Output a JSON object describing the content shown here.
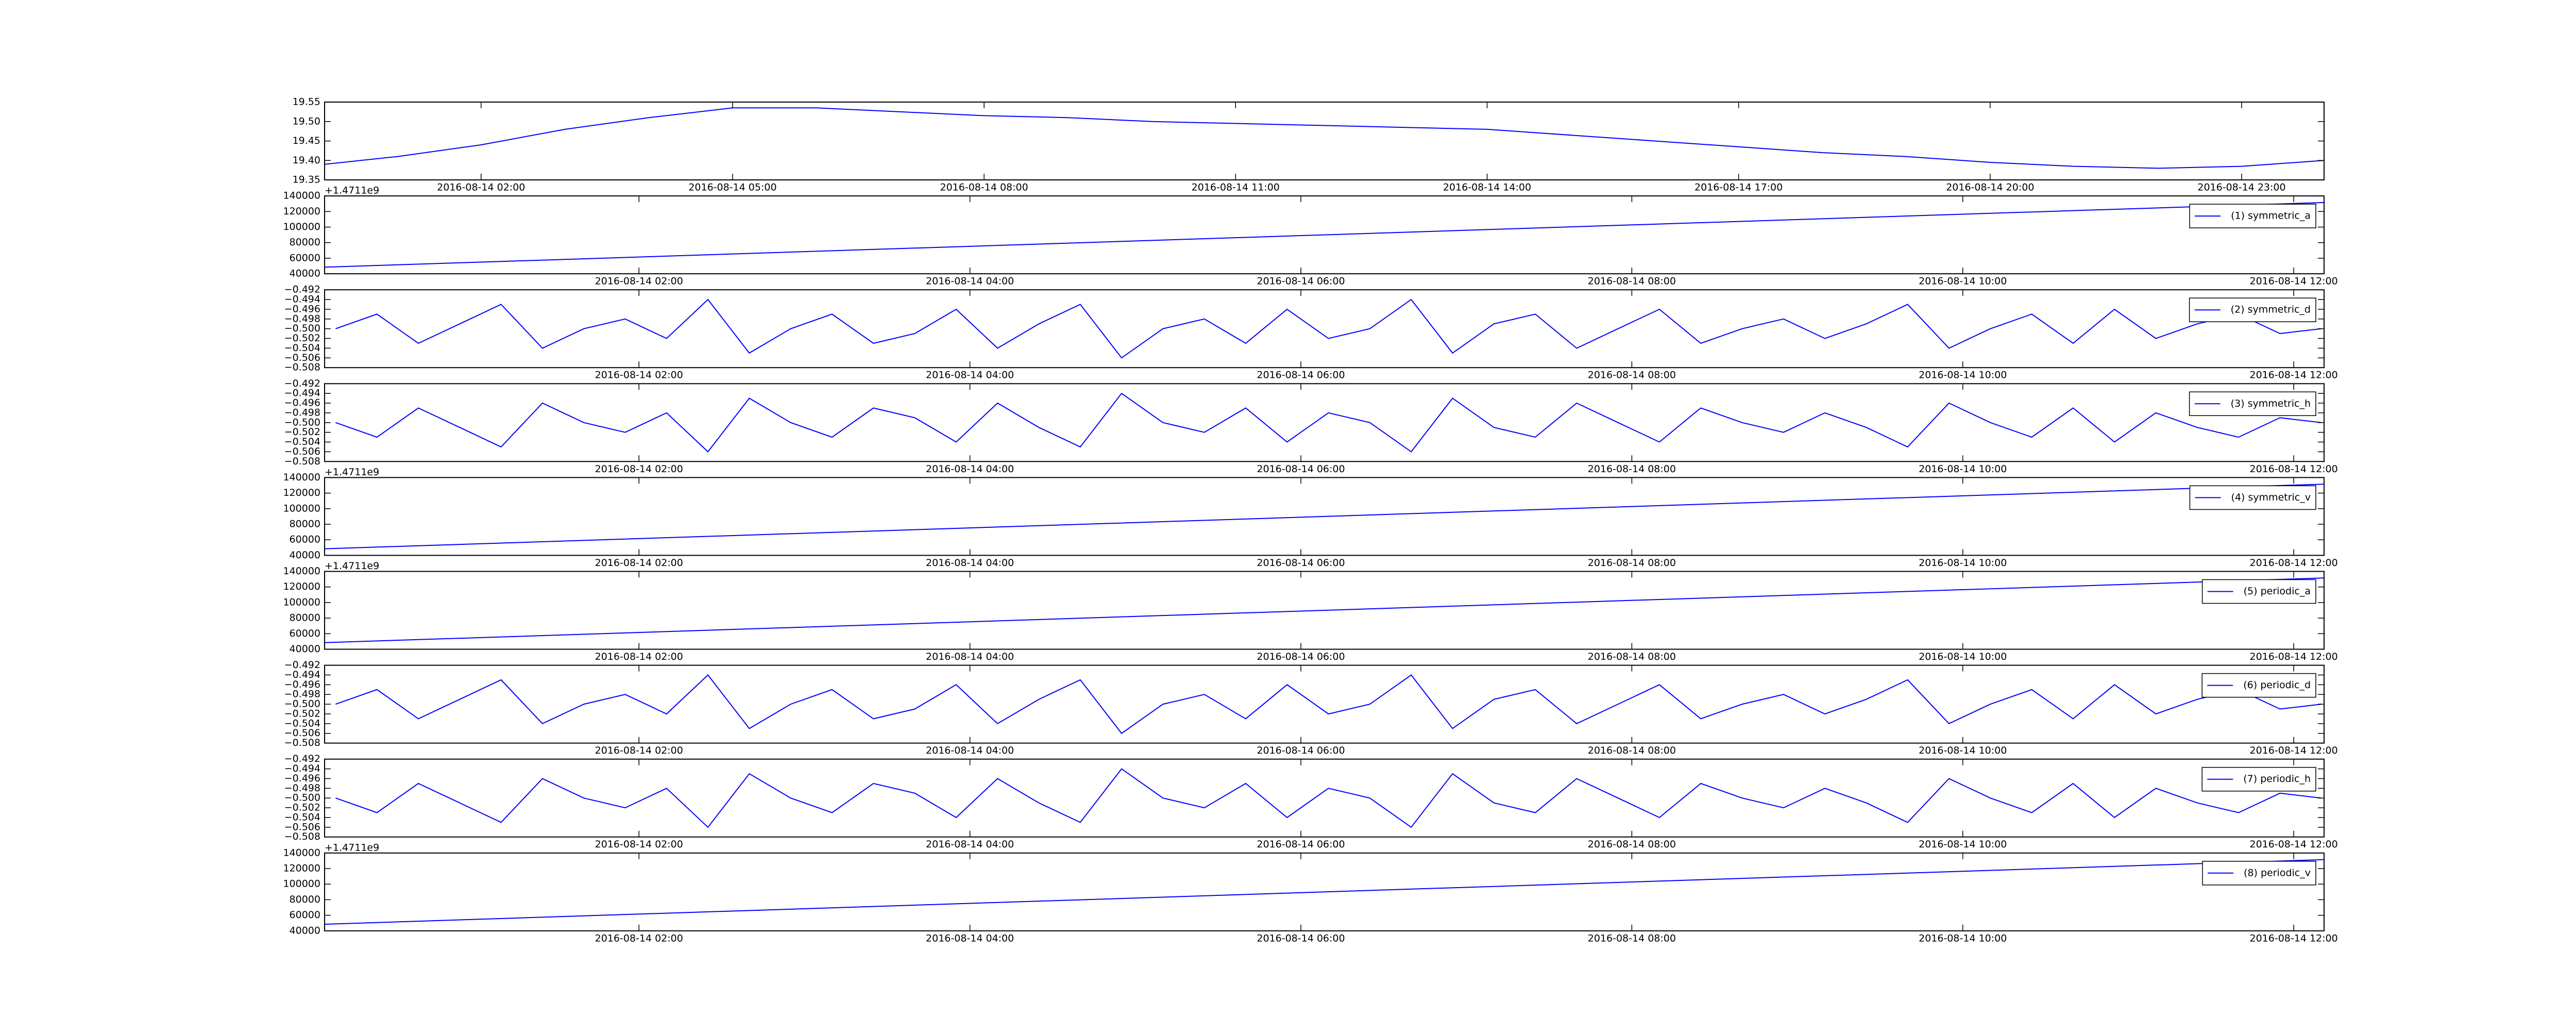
{
  "chart_data": [
    {
      "type": "line",
      "x": [
        "2016-08-14 00:08",
        "2016-08-14 01:00",
        "2016-08-14 02:00",
        "2016-08-14 03:00",
        "2016-08-14 04:00",
        "2016-08-14 05:00",
        "2016-08-14 06:00",
        "2016-08-14 07:00",
        "2016-08-14 08:00",
        "2016-08-14 09:00",
        "2016-08-14 10:00",
        "2016-08-14 11:00",
        "2016-08-14 12:00",
        "2016-08-14 13:00",
        "2016-08-14 14:00",
        "2016-08-14 15:00",
        "2016-08-14 16:00",
        "2016-08-14 17:00",
        "2016-08-14 18:00",
        "2016-08-14 19:00",
        "2016-08-14 20:00",
        "2016-08-14 21:00",
        "2016-08-14 22:00",
        "2016-08-14 23:00",
        "2016-08-14 23:59"
      ],
      "series": [
        {
          "color": "#0000ff",
          "values": [
            19.39,
            19.41,
            19.44,
            19.48,
            19.51,
            19.535,
            19.535,
            19.525,
            19.515,
            19.51,
            19.5,
            19.495,
            19.49,
            19.485,
            19.48,
            19.465,
            19.45,
            19.435,
            19.42,
            19.41,
            19.395,
            19.385,
            19.38,
            19.385,
            19.4
          ]
        }
      ],
      "xlim": [
        "2016-08-14 00:08",
        "2016-08-14 23:59"
      ],
      "xticks": [
        "2016-08-14 02:00",
        "2016-08-14 05:00",
        "2016-08-14 08:00",
        "2016-08-14 11:00",
        "2016-08-14 14:00",
        "2016-08-14 17:00",
        "2016-08-14 20:00",
        "2016-08-14 23:00"
      ],
      "ylim": [
        19.35,
        19.55
      ],
      "yticks": [
        19.35,
        {
          "value": 19.4,
          "label": "19.40"
        },
        19.45,
        {
          "value": 19.5,
          "label": "19.50"
        },
        19.55
      ]
    },
    {
      "type": "line",
      "x": [
        "2016-08-14 00:06",
        "2016-08-14 12:11"
      ],
      "series": [
        {
          "name": "(1) symmetric_a",
          "color": "#0000ff",
          "values": [
            48500,
            131500
          ]
        }
      ],
      "xlim": [
        "2016-08-14 00:06",
        "2016-08-14 12:11"
      ],
      "xticks": [
        "2016-08-14 02:00",
        "2016-08-14 04:00",
        "2016-08-14 06:00",
        "2016-08-14 08:00",
        "2016-08-14 10:00",
        "2016-08-14 12:00"
      ],
      "ylim": [
        40000,
        140000
      ],
      "yticks": [
        40000,
        60000,
        80000,
        100000,
        120000,
        140000
      ],
      "y_offset_text": "+1.4711e9",
      "legend": "upper right"
    },
    {
      "type": "line",
      "x": [
        "2016-08-14 00:10",
        "2016-08-14 00:25",
        "2016-08-14 00:40",
        "2016-08-14 00:55",
        "2016-08-14 01:10",
        "2016-08-14 01:25",
        "2016-08-14 01:40",
        "2016-08-14 01:55",
        "2016-08-14 02:10",
        "2016-08-14 02:25",
        "2016-08-14 02:40",
        "2016-08-14 02:55",
        "2016-08-14 03:10",
        "2016-08-14 03:25",
        "2016-08-14 03:40",
        "2016-08-14 03:55",
        "2016-08-14 04:10",
        "2016-08-14 04:25",
        "2016-08-14 04:40",
        "2016-08-14 04:55",
        "2016-08-14 05:10",
        "2016-08-14 05:25",
        "2016-08-14 05:40",
        "2016-08-14 05:55",
        "2016-08-14 06:10",
        "2016-08-14 06:25",
        "2016-08-14 06:40",
        "2016-08-14 06:55",
        "2016-08-14 07:10",
        "2016-08-14 07:25",
        "2016-08-14 07:40",
        "2016-08-14 07:55",
        "2016-08-14 08:10",
        "2016-08-14 08:25",
        "2016-08-14 08:40",
        "2016-08-14 08:55",
        "2016-08-14 09:10",
        "2016-08-14 09:25",
        "2016-08-14 09:40",
        "2016-08-14 09:55",
        "2016-08-14 10:10",
        "2016-08-14 10:25",
        "2016-08-14 10:40",
        "2016-08-14 10:55",
        "2016-08-14 11:10",
        "2016-08-14 11:25",
        "2016-08-14 11:40",
        "2016-08-14 11:55",
        "2016-08-14 12:10"
      ],
      "series": [
        {
          "name": "(2) symmetric_d",
          "color": "#0000ff",
          "values": [
            -0.5,
            -0.497,
            -0.503,
            -0.499,
            -0.495,
            -0.504,
            -0.5,
            -0.498,
            -0.502,
            -0.494,
            -0.505,
            -0.5,
            -0.497,
            -0.503,
            -0.501,
            -0.496,
            -0.504,
            -0.499,
            -0.495,
            -0.506,
            -0.5,
            -0.498,
            -0.503,
            -0.496,
            -0.502,
            -0.5,
            -0.494,
            -0.505,
            -0.499,
            -0.497,
            -0.504,
            -0.5,
            -0.496,
            -0.503,
            -0.5,
            -0.498,
            -0.502,
            -0.499,
            -0.495,
            -0.504,
            -0.5,
            -0.497,
            -0.503,
            -0.496,
            -0.502,
            -0.499,
            -0.497,
            -0.501,
            -0.5
          ]
        }
      ],
      "xlim": [
        "2016-08-14 00:06",
        "2016-08-14 12:11"
      ],
      "xticks": [
        "2016-08-14 02:00",
        "2016-08-14 04:00",
        "2016-08-14 06:00",
        "2016-08-14 08:00",
        "2016-08-14 10:00",
        "2016-08-14 12:00"
      ],
      "ylim": [
        -0.508,
        -0.492
      ],
      "yticks": [
        {
          "value": -0.508,
          "label": "−0.508"
        },
        {
          "value": -0.506,
          "label": "−0.506"
        },
        {
          "value": -0.504,
          "label": "−0.504"
        },
        {
          "value": -0.502,
          "label": "−0.502"
        },
        {
          "value": -0.5,
          "label": "−0.500"
        },
        {
          "value": -0.498,
          "label": "−0.498"
        },
        {
          "value": -0.496,
          "label": "−0.496"
        },
        {
          "value": -0.494,
          "label": "−0.494"
        },
        {
          "value": -0.492,
          "label": "−0.492"
        }
      ],
      "legend": "upper right"
    },
    {
      "type": "line",
      "x": [
        "2016-08-14 00:10",
        "2016-08-14 00:25",
        "2016-08-14 00:40",
        "2016-08-14 00:55",
        "2016-08-14 01:10",
        "2016-08-14 01:25",
        "2016-08-14 01:40",
        "2016-08-14 01:55",
        "2016-08-14 02:10",
        "2016-08-14 02:25",
        "2016-08-14 02:40",
        "2016-08-14 02:55",
        "2016-08-14 03:10",
        "2016-08-14 03:25",
        "2016-08-14 03:40",
        "2016-08-14 03:55",
        "2016-08-14 04:10",
        "2016-08-14 04:25",
        "2016-08-14 04:40",
        "2016-08-14 04:55",
        "2016-08-14 05:10",
        "2016-08-14 05:25",
        "2016-08-14 05:40",
        "2016-08-14 05:55",
        "2016-08-14 06:10",
        "2016-08-14 06:25",
        "2016-08-14 06:40",
        "2016-08-14 06:55",
        "2016-08-14 07:10",
        "2016-08-14 07:25",
        "2016-08-14 07:40",
        "2016-08-14 07:55",
        "2016-08-14 08:10",
        "2016-08-14 08:25",
        "2016-08-14 08:40",
        "2016-08-14 08:55",
        "2016-08-14 09:10",
        "2016-08-14 09:25",
        "2016-08-14 09:40",
        "2016-08-14 09:55",
        "2016-08-14 10:10",
        "2016-08-14 10:25",
        "2016-08-14 10:40",
        "2016-08-14 10:55",
        "2016-08-14 11:10",
        "2016-08-14 11:25",
        "2016-08-14 11:40",
        "2016-08-14 11:55",
        "2016-08-14 12:10"
      ],
      "series": [
        {
          "name": "(3) symmetric_h",
          "color": "#0000ff",
          "values": [
            -0.5,
            -0.503,
            -0.497,
            -0.501,
            -0.505,
            -0.496,
            -0.5,
            -0.502,
            -0.498,
            -0.506,
            -0.495,
            -0.5,
            -0.503,
            -0.497,
            -0.499,
            -0.504,
            -0.496,
            -0.501,
            -0.505,
            -0.494,
            -0.5,
            -0.502,
            -0.497,
            -0.504,
            -0.498,
            -0.5,
            -0.506,
            -0.495,
            -0.501,
            -0.503,
            -0.496,
            -0.5,
            -0.504,
            -0.497,
            -0.5,
            -0.502,
            -0.498,
            -0.501,
            -0.505,
            -0.496,
            -0.5,
            -0.503,
            -0.497,
            -0.504,
            -0.498,
            -0.501,
            -0.503,
            -0.499,
            -0.5
          ]
        }
      ],
      "xlim": [
        "2016-08-14 00:06",
        "2016-08-14 12:11"
      ],
      "xticks": [
        "2016-08-14 02:00",
        "2016-08-14 04:00",
        "2016-08-14 06:00",
        "2016-08-14 08:00",
        "2016-08-14 10:00",
        "2016-08-14 12:00"
      ],
      "ylim": [
        -0.508,
        -0.492
      ],
      "yticks": [
        {
          "value": -0.508,
          "label": "−0.508"
        },
        {
          "value": -0.506,
          "label": "−0.506"
        },
        {
          "value": -0.504,
          "label": "−0.504"
        },
        {
          "value": -0.502,
          "label": "−0.502"
        },
        {
          "value": -0.5,
          "label": "−0.500"
        },
        {
          "value": -0.498,
          "label": "−0.498"
        },
        {
          "value": -0.496,
          "label": "−0.496"
        },
        {
          "value": -0.494,
          "label": "−0.494"
        },
        {
          "value": -0.492,
          "label": "−0.492"
        }
      ],
      "legend": "upper right"
    },
    {
      "type": "line",
      "x": [
        "2016-08-14 00:06",
        "2016-08-14 12:11"
      ],
      "series": [
        {
          "name": "(4) symmetric_v",
          "color": "#0000ff",
          "values": [
            48500,
            131500
          ]
        }
      ],
      "xlim": [
        "2016-08-14 00:06",
        "2016-08-14 12:11"
      ],
      "xticks": [
        "2016-08-14 02:00",
        "2016-08-14 04:00",
        "2016-08-14 06:00",
        "2016-08-14 08:00",
        "2016-08-14 10:00",
        "2016-08-14 12:00"
      ],
      "ylim": [
        40000,
        140000
      ],
      "yticks": [
        40000,
        60000,
        80000,
        100000,
        120000,
        140000
      ],
      "y_offset_text": "+1.4711e9",
      "legend": "upper right"
    },
    {
      "type": "line",
      "x": [
        "2016-08-14 00:06",
        "2016-08-14 12:11"
      ],
      "series": [
        {
          "name": "(5) periodic_a",
          "color": "#0000ff",
          "values": [
            48500,
            131500
          ]
        }
      ],
      "xlim": [
        "2016-08-14 00:06",
        "2016-08-14 12:11"
      ],
      "xticks": [
        "2016-08-14 02:00",
        "2016-08-14 04:00",
        "2016-08-14 06:00",
        "2016-08-14 08:00",
        "2016-08-14 10:00",
        "2016-08-14 12:00"
      ],
      "ylim": [
        40000,
        140000
      ],
      "yticks": [
        40000,
        60000,
        80000,
        100000,
        120000,
        140000
      ],
      "y_offset_text": "+1.4711e9",
      "legend": "upper right"
    },
    {
      "type": "line",
      "x": [
        "2016-08-14 00:10",
        "2016-08-14 00:25",
        "2016-08-14 00:40",
        "2016-08-14 00:55",
        "2016-08-14 01:10",
        "2016-08-14 01:25",
        "2016-08-14 01:40",
        "2016-08-14 01:55",
        "2016-08-14 02:10",
        "2016-08-14 02:25",
        "2016-08-14 02:40",
        "2016-08-14 02:55",
        "2016-08-14 03:10",
        "2016-08-14 03:25",
        "2016-08-14 03:40",
        "2016-08-14 03:55",
        "2016-08-14 04:10",
        "2016-08-14 04:25",
        "2016-08-14 04:40",
        "2016-08-14 04:55",
        "2016-08-14 05:10",
        "2016-08-14 05:25",
        "2016-08-14 05:40",
        "2016-08-14 05:55",
        "2016-08-14 06:10",
        "2016-08-14 06:25",
        "2016-08-14 06:40",
        "2016-08-14 06:55",
        "2016-08-14 07:10",
        "2016-08-14 07:25",
        "2016-08-14 07:40",
        "2016-08-14 07:55",
        "2016-08-14 08:10",
        "2016-08-14 08:25",
        "2016-08-14 08:40",
        "2016-08-14 08:55",
        "2016-08-14 09:10",
        "2016-08-14 09:25",
        "2016-08-14 09:40",
        "2016-08-14 09:55",
        "2016-08-14 10:10",
        "2016-08-14 10:25",
        "2016-08-14 10:40",
        "2016-08-14 10:55",
        "2016-08-14 11:10",
        "2016-08-14 11:25",
        "2016-08-14 11:40",
        "2016-08-14 11:55",
        "2016-08-14 12:10"
      ],
      "series": [
        {
          "name": "(6) periodic_d",
          "color": "#0000ff",
          "values": [
            -0.5,
            -0.497,
            -0.503,
            -0.499,
            -0.495,
            -0.504,
            -0.5,
            -0.498,
            -0.502,
            -0.494,
            -0.505,
            -0.5,
            -0.497,
            -0.503,
            -0.501,
            -0.496,
            -0.504,
            -0.499,
            -0.495,
            -0.506,
            -0.5,
            -0.498,
            -0.503,
            -0.496,
            -0.502,
            -0.5,
            -0.494,
            -0.505,
            -0.499,
            -0.497,
            -0.504,
            -0.5,
            -0.496,
            -0.503,
            -0.5,
            -0.498,
            -0.502,
            -0.499,
            -0.495,
            -0.504,
            -0.5,
            -0.497,
            -0.503,
            -0.496,
            -0.502,
            -0.499,
            -0.497,
            -0.501,
            -0.5
          ]
        }
      ],
      "xlim": [
        "2016-08-14 00:06",
        "2016-08-14 12:11"
      ],
      "xticks": [
        "2016-08-14 02:00",
        "2016-08-14 04:00",
        "2016-08-14 06:00",
        "2016-08-14 08:00",
        "2016-08-14 10:00",
        "2016-08-14 12:00"
      ],
      "ylim": [
        -0.508,
        -0.492
      ],
      "yticks": [
        {
          "value": -0.508,
          "label": "−0.508"
        },
        {
          "value": -0.506,
          "label": "−0.506"
        },
        {
          "value": -0.504,
          "label": "−0.504"
        },
        {
          "value": -0.502,
          "label": "−0.502"
        },
        {
          "value": -0.5,
          "label": "−0.500"
        },
        {
          "value": -0.498,
          "label": "−0.498"
        },
        {
          "value": -0.496,
          "label": "−0.496"
        },
        {
          "value": -0.494,
          "label": "−0.494"
        },
        {
          "value": -0.492,
          "label": "−0.492"
        }
      ],
      "legend": "upper right"
    },
    {
      "type": "line",
      "x": [
        "2016-08-14 00:10",
        "2016-08-14 00:25",
        "2016-08-14 00:40",
        "2016-08-14 00:55",
        "2016-08-14 01:10",
        "2016-08-14 01:25",
        "2016-08-14 01:40",
        "2016-08-14 01:55",
        "2016-08-14 02:10",
        "2016-08-14 02:25",
        "2016-08-14 02:40",
        "2016-08-14 02:55",
        "2016-08-14 03:10",
        "2016-08-14 03:25",
        "2016-08-14 03:40",
        "2016-08-14 03:55",
        "2016-08-14 04:10",
        "2016-08-14 04:25",
        "2016-08-14 04:40",
        "2016-08-14 04:55",
        "2016-08-14 05:10",
        "2016-08-14 05:25",
        "2016-08-14 05:40",
        "2016-08-14 05:55",
        "2016-08-14 06:10",
        "2016-08-14 06:25",
        "2016-08-14 06:40",
        "2016-08-14 06:55",
        "2016-08-14 07:10",
        "2016-08-14 07:25",
        "2016-08-14 07:40",
        "2016-08-14 07:55",
        "2016-08-14 08:10",
        "2016-08-14 08:25",
        "2016-08-14 08:40",
        "2016-08-14 08:55",
        "2016-08-14 09:10",
        "2016-08-14 09:25",
        "2016-08-14 09:40",
        "2016-08-14 09:55",
        "2016-08-14 10:10",
        "2016-08-14 10:25",
        "2016-08-14 10:40",
        "2016-08-14 10:55",
        "2016-08-14 11:10",
        "2016-08-14 11:25",
        "2016-08-14 11:40",
        "2016-08-14 11:55",
        "2016-08-14 12:10"
      ],
      "series": [
        {
          "name": "(7) periodic_h",
          "color": "#0000ff",
          "values": [
            -0.5,
            -0.503,
            -0.497,
            -0.501,
            -0.505,
            -0.496,
            -0.5,
            -0.502,
            -0.498,
            -0.506,
            -0.495,
            -0.5,
            -0.503,
            -0.497,
            -0.499,
            -0.504,
            -0.496,
            -0.501,
            -0.505,
            -0.494,
            -0.5,
            -0.502,
            -0.497,
            -0.504,
            -0.498,
            -0.5,
            -0.506,
            -0.495,
            -0.501,
            -0.503,
            -0.496,
            -0.5,
            -0.504,
            -0.497,
            -0.5,
            -0.502,
            -0.498,
            -0.501,
            -0.505,
            -0.496,
            -0.5,
            -0.503,
            -0.497,
            -0.504,
            -0.498,
            -0.501,
            -0.503,
            -0.499,
            -0.5
          ]
        }
      ],
      "xlim": [
        "2016-08-14 00:06",
        "2016-08-14 12:11"
      ],
      "xticks": [
        "2016-08-14 02:00",
        "2016-08-14 04:00",
        "2016-08-14 06:00",
        "2016-08-14 08:00",
        "2016-08-14 10:00",
        "2016-08-14 12:00"
      ],
      "ylim": [
        -0.508,
        -0.492
      ],
      "yticks": [
        {
          "value": -0.508,
          "label": "−0.508"
        },
        {
          "value": -0.506,
          "label": "−0.506"
        },
        {
          "value": -0.504,
          "label": "−0.504"
        },
        {
          "value": -0.502,
          "label": "−0.502"
        },
        {
          "value": -0.5,
          "label": "−0.500"
        },
        {
          "value": -0.498,
          "label": "−0.498"
        },
        {
          "value": -0.496,
          "label": "−0.496"
        },
        {
          "value": -0.494,
          "label": "−0.494"
        },
        {
          "value": -0.492,
          "label": "−0.492"
        }
      ],
      "legend": "upper right"
    },
    {
      "type": "line",
      "x": [
        "2016-08-14 00:06",
        "2016-08-14 12:11"
      ],
      "series": [
        {
          "name": "(8) periodic_v",
          "color": "#0000ff",
          "values": [
            48500,
            131500
          ]
        }
      ],
      "xlim": [
        "2016-08-14 00:06",
        "2016-08-14 12:11"
      ],
      "xticks": [
        "2016-08-14 02:00",
        "2016-08-14 04:00",
        "2016-08-14 06:00",
        "2016-08-14 08:00",
        "2016-08-14 10:00",
        "2016-08-14 12:00"
      ],
      "ylim": [
        40000,
        140000
      ],
      "yticks": [
        40000,
        60000,
        80000,
        100000,
        120000,
        140000
      ],
      "y_offset_text": "+1.4711e9",
      "legend": "upper right"
    }
  ]
}
